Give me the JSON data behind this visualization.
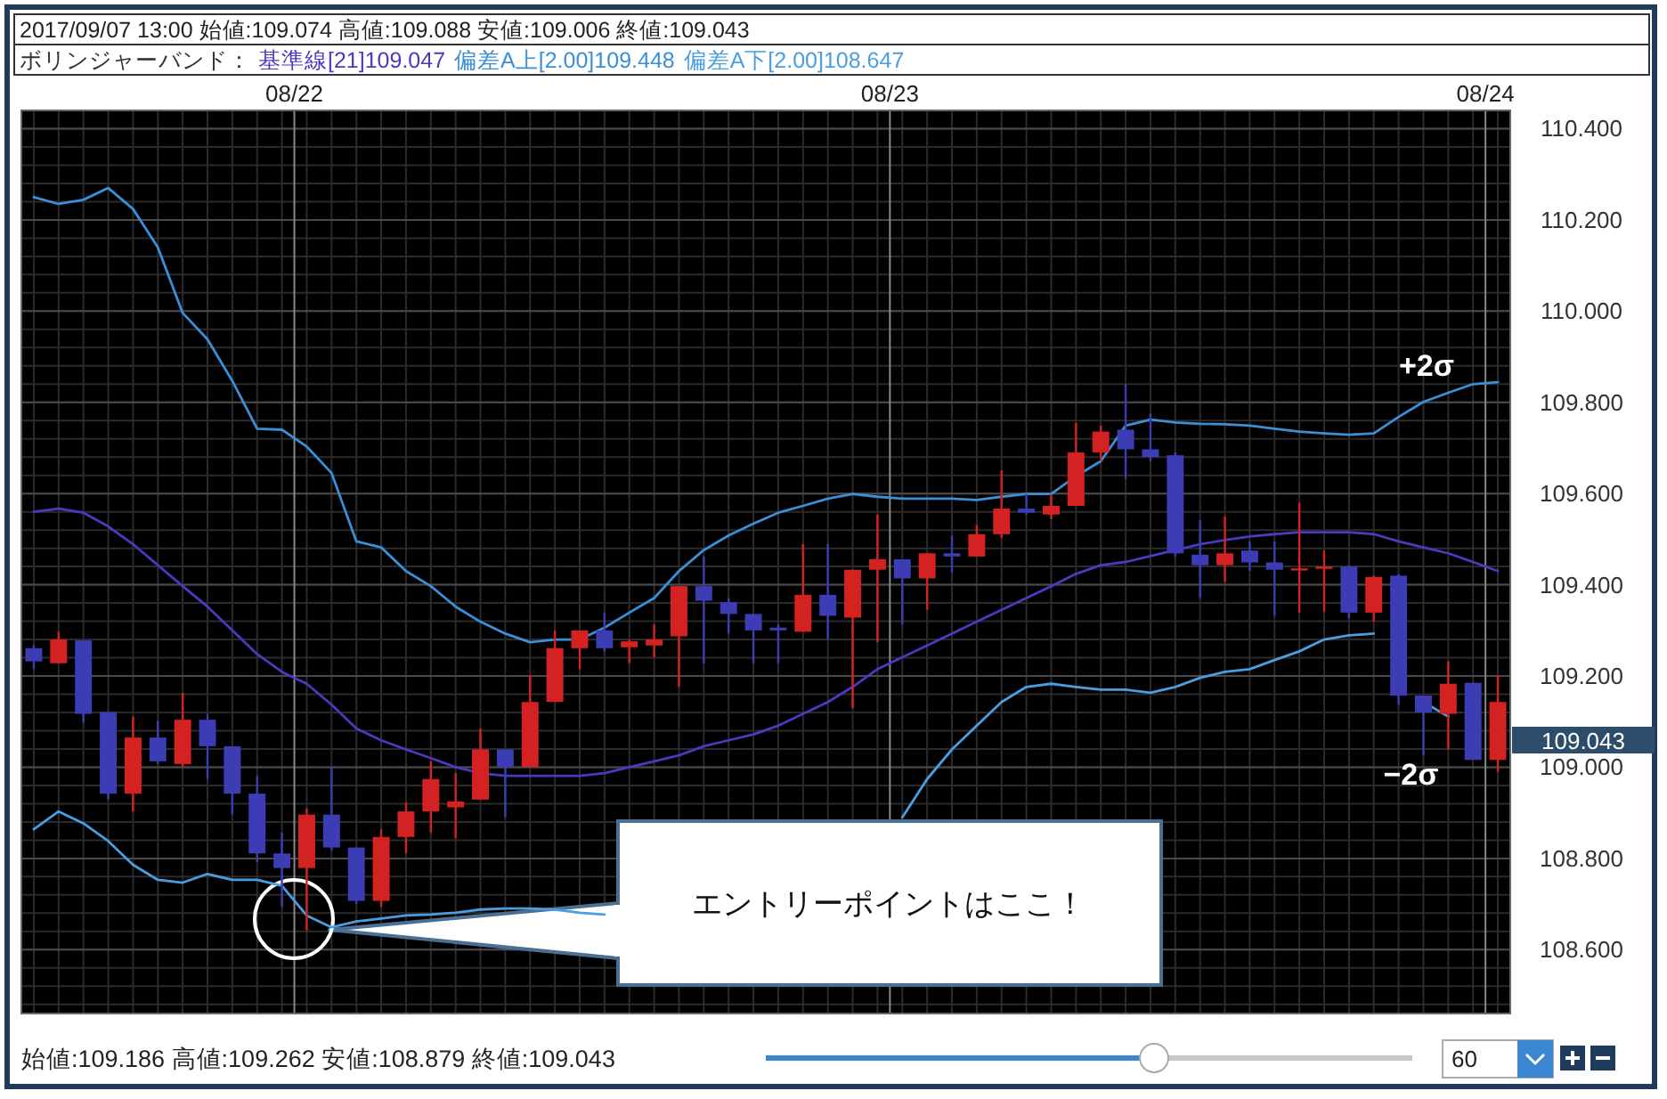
{
  "chart_data": {
    "type": "candlestick",
    "title": "2017/09/07 13:00 始値:109.074 高値:109.088 安値:109.006 終値:109.043",
    "legend_title": "ボリンジャーバンド：",
    "legend": "top left",
    "grid": true,
    "x": [
      "--08-21T13:30",
      "--08-21T14:30",
      "--08-21T15:30",
      "--08-21T16:30",
      "--08-21T17:30",
      "--08-21T18:30",
      "--08-21T19:30",
      "--08-21T20:30",
      "--08-21T21:30",
      "--08-21T22:30",
      "--08-21T23:30",
      "--08-22T00:30",
      "--08-22T01:30",
      "--08-22T02:30",
      "--08-22T03:30",
      "--08-22T04:30",
      "--08-22T05:30",
      "--08-22T06:30",
      "--08-22T07:30",
      "--08-22T08:30",
      "--08-22T09:30",
      "--08-22T10:30",
      "--08-22T11:30",
      "--08-22T12:30",
      "--08-22T13:30",
      "--08-22T14:30",
      "--08-22T15:30",
      "--08-22T16:30",
      "--08-22T17:30",
      "--08-22T18:30",
      "--08-22T19:30",
      "--08-22T20:30",
      "--08-22T21:30",
      "--08-22T22:30",
      "--08-22T23:30",
      "--08-23T00:30",
      "--08-23T01:30",
      "--08-23T02:30",
      "--08-23T03:30",
      "--08-23T04:30",
      "--08-23T05:30",
      "--08-23T06:30",
      "--08-23T07:30",
      "--08-23T08:30",
      "--08-23T09:30",
      "--08-23T10:30",
      "--08-23T11:30",
      "--08-23T12:30",
      "--08-23T13:30",
      "--08-23T14:30",
      "--08-23T15:30",
      "--08-23T16:30",
      "--08-23T17:30",
      "--08-23T18:30",
      "--08-23T19:30",
      "--08-23T20:30",
      "--08-23T21:30",
      "--08-23T22:30",
      "--08-23T23:30",
      "--08-24T00:30"
    ],
    "ohlc": [
      [
        109.261,
        109.267,
        109.215,
        109.232
      ],
      [
        109.228,
        109.297,
        109.228,
        109.28
      ],
      [
        109.278,
        109.278,
        109.098,
        109.117
      ],
      [
        109.121,
        109.121,
        108.929,
        108.942
      ],
      [
        108.942,
        109.111,
        108.903,
        109.065
      ],
      [
        109.065,
        109.102,
        109.007,
        109.013
      ],
      [
        109.007,
        109.163,
        109.0,
        109.104
      ],
      [
        109.104,
        109.117,
        108.974,
        109.046
      ],
      [
        109.046,
        109.046,
        108.896,
        108.942
      ],
      [
        108.942,
        108.981,
        108.792,
        108.811
      ],
      [
        108.811,
        108.857,
        108.694,
        108.779
      ],
      [
        108.779,
        108.909,
        108.642,
        108.896
      ],
      [
        108.896,
        109.0,
        108.818,
        108.824
      ],
      [
        108.824,
        108.824,
        108.7,
        108.707
      ],
      [
        108.707,
        108.864,
        108.694,
        108.847
      ],
      [
        108.847,
        108.922,
        108.811,
        108.903
      ],
      [
        108.903,
        109.013,
        108.857,
        108.974
      ],
      [
        108.912,
        108.987,
        108.844,
        108.925
      ],
      [
        108.929,
        109.085,
        108.929,
        109.039
      ],
      [
        109.039,
        109.039,
        108.89,
        109.0
      ],
      [
        109.0,
        109.202,
        109.0,
        109.143
      ],
      [
        109.143,
        109.3,
        109.143,
        109.261
      ],
      [
        109.261,
        109.3,
        109.215,
        109.3
      ],
      [
        109.3,
        109.339,
        109.254,
        109.261
      ],
      [
        109.263,
        109.28,
        109.228,
        109.276
      ],
      [
        109.267,
        109.313,
        109.241,
        109.28
      ],
      [
        109.287,
        109.397,
        109.176,
        109.397
      ],
      [
        109.397,
        109.462,
        109.228,
        109.365
      ],
      [
        109.362,
        109.371,
        109.293,
        109.336
      ],
      [
        109.336,
        109.336,
        109.228,
        109.3
      ],
      [
        109.306,
        109.313,
        109.228,
        109.3
      ],
      [
        109.297,
        109.489,
        109.297,
        109.378
      ],
      [
        109.378,
        109.489,
        109.28,
        109.332
      ],
      [
        109.328,
        109.433,
        109.13,
        109.433
      ],
      [
        109.433,
        109.554,
        109.274,
        109.456
      ],
      [
        109.456,
        109.456,
        109.313,
        109.414
      ],
      [
        109.414,
        109.469,
        109.345,
        109.469
      ],
      [
        109.469,
        109.508,
        109.427,
        109.462
      ],
      [
        109.462,
        109.531,
        109.462,
        109.511
      ],
      [
        109.511,
        109.651,
        109.502,
        109.567
      ],
      [
        109.567,
        109.599,
        109.554,
        109.558
      ],
      [
        109.554,
        109.599,
        109.544,
        109.573
      ],
      [
        109.573,
        109.755,
        109.573,
        109.69
      ],
      [
        109.69,
        109.749,
        109.671,
        109.736
      ],
      [
        109.74,
        109.84,
        109.632,
        109.697
      ],
      [
        109.697,
        109.775,
        109.671,
        109.68
      ],
      [
        109.684,
        109.69,
        109.462,
        109.469
      ],
      [
        109.466,
        109.541,
        109.371,
        109.443
      ],
      [
        109.443,
        109.55,
        109.406,
        109.469
      ],
      [
        109.475,
        109.495,
        109.43,
        109.449
      ],
      [
        109.449,
        109.495,
        109.332,
        109.433
      ],
      [
        109.433,
        109.58,
        109.339,
        109.436
      ],
      [
        109.435,
        109.475,
        109.341,
        109.44
      ],
      [
        109.44,
        109.443,
        109.326,
        109.339
      ],
      [
        109.339,
        109.42,
        109.319,
        109.417
      ],
      [
        109.42,
        109.423,
        109.137,
        109.157
      ],
      [
        109.157,
        109.157,
        109.026,
        109.12
      ],
      [
        109.117,
        109.232,
        109.039,
        109.183
      ],
      [
        109.185,
        109.185,
        109.016,
        109.016
      ],
      [
        109.016,
        109.202,
        108.99,
        109.143
      ]
    ],
    "series": [
      {
        "type": "line",
        "name": "基準線[21]109.047",
        "color": "#4a3ac0",
        "values": [
          109.56,
          109.567,
          109.558,
          109.528,
          109.489,
          109.443,
          109.397,
          109.352,
          109.3,
          109.248,
          109.209,
          109.183,
          109.137,
          109.085,
          109.059,
          109.039,
          109.02,
          109.0,
          108.987,
          108.981,
          108.981,
          108.981,
          108.981,
          108.987,
          109.0,
          109.013,
          109.026,
          109.046,
          109.059,
          109.072,
          109.091,
          109.117,
          109.143,
          109.176,
          109.215,
          109.241,
          109.267,
          109.293,
          109.319,
          109.345,
          109.371,
          109.397,
          109.424,
          109.443,
          109.45,
          109.463,
          109.476,
          109.489,
          109.498,
          109.506,
          109.511,
          109.515,
          109.515,
          109.515,
          109.511,
          109.495,
          109.482,
          109.469,
          109.45,
          109.43
        ]
      },
      {
        "type": "line",
        "name": "偏差A上[2.00]109.448",
        "color": "#3a8fd6",
        "values": [
          110.25,
          110.235,
          110.244,
          110.27,
          110.224,
          110.14,
          109.996,
          109.938,
          109.847,
          109.742,
          109.74,
          109.703,
          109.645,
          109.495,
          109.482,
          109.43,
          109.397,
          109.352,
          109.319,
          109.293,
          109.274,
          109.28,
          109.28,
          109.306,
          109.339,
          109.371,
          109.43,
          109.476,
          109.508,
          109.534,
          109.558,
          109.573,
          109.589,
          109.599,
          109.593,
          109.589,
          109.589,
          109.589,
          109.586,
          109.593,
          109.599,
          109.599,
          109.638,
          109.671,
          109.749,
          109.762,
          109.756,
          109.753,
          109.752,
          109.749,
          109.742,
          109.736,
          109.732,
          109.729,
          109.732,
          109.768,
          109.801,
          109.821,
          109.84,
          109.844
        ]
      },
      {
        "type": "line",
        "name": "偏差A下[2.00]108.647",
        "color": "#4a9ee0",
        "values": [
          108.864,
          108.903,
          108.877,
          108.838,
          108.786,
          108.753,
          108.747,
          108.766,
          108.753,
          108.753,
          108.74,
          108.675,
          108.649,
          108.662,
          108.668,
          108.675,
          108.677,
          108.681,
          108.688,
          108.69,
          108.69,
          108.688,
          108.681,
          108.677,
          null,
          null,
          null,
          null,
          null,
          null,
          null,
          null,
          null,
          null,
          null,
          108.89,
          108.974,
          109.039,
          109.091,
          109.143,
          109.176,
          109.183,
          109.176,
          109.17,
          109.17,
          109.163,
          109.176,
          109.196,
          109.209,
          109.215,
          109.235,
          109.254,
          109.28,
          109.289,
          109.293,
          null,
          109.143,
          109.111,
          null,
          null
        ]
      }
    ],
    "xlim": [
      "--08-21T13:00",
      "--08-24T01:00"
    ],
    "xticks": [
      {
        "value": "--08-22T00:00",
        "label": "08/22"
      },
      {
        "value": "--08-23T00:00",
        "label": "08/23"
      },
      {
        "value": "--08-24T00:00",
        "label": "08/24"
      }
    ],
    "ylim": [
      108.46,
      110.44
    ],
    "yticks": [
      {
        "value": 108.6,
        "label": "108.600"
      },
      {
        "value": 108.8,
        "label": "108.800"
      },
      {
        "value": 109.0,
        "label": "109.000"
      },
      {
        "value": 109.2,
        "label": "109.200"
      },
      {
        "value": 109.4,
        "label": "109.400"
      },
      {
        "value": 109.6,
        "label": "109.600"
      },
      {
        "value": 109.8,
        "label": "109.800"
      },
      {
        "value": 110.0,
        "label": "110.000"
      },
      {
        "value": 110.2,
        "label": "110.200"
      },
      {
        "value": 110.4,
        "label": "110.400"
      }
    ],
    "annotations": [
      "+2σ",
      {
        "text": "−2σ",
        "x": "--08-23T21:00",
        "y": 109.15
      },
      "エントリーポイントはここ！",
      "始値:109.186 高値:109.262 安値:108.879 終値:109.043",
      "60",
      "109.043"
    ]
  }
}
